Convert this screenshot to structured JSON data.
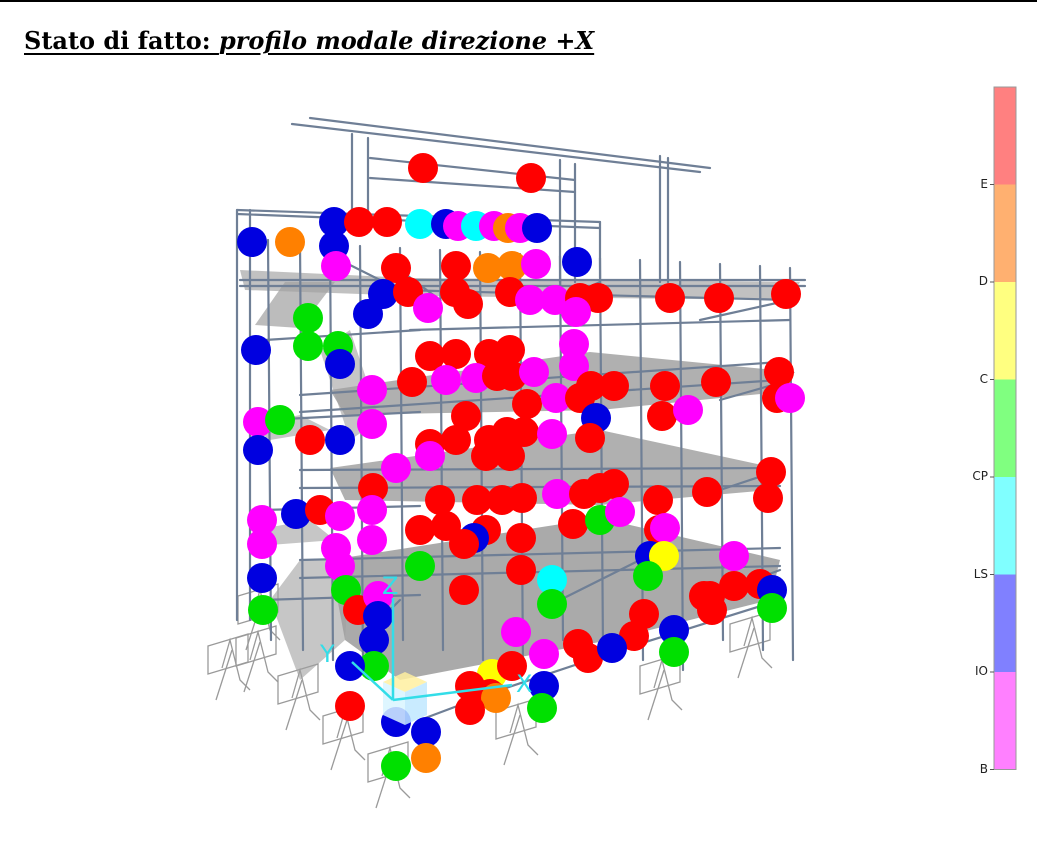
{
  "title": {
    "prefix": "Stato di fatto: ",
    "emphasis": "profilo modale direzione +X"
  },
  "axes": {
    "x": "X",
    "y": "Y",
    "z": "Z"
  },
  "legend": {
    "labels": [
      "E",
      "D",
      "C",
      "CP",
      "LS",
      "IO",
      "B"
    ],
    "bands": [
      {
        "color": "#ff8080"
      },
      {
        "color": "#ffb070"
      },
      {
        "color": "#ffff80"
      },
      {
        "color": "#80ff80"
      },
      {
        "color": "#80ffff"
      },
      {
        "color": "#8080ff"
      },
      {
        "color": "#ff80ff"
      }
    ]
  },
  "hinge_colors": {
    "E": "#ff0000",
    "D": "#ff8000",
    "C": "#ffff00",
    "CP": "#00e000",
    "LS": "#00ffff",
    "IO": "#0000e0",
    "B": "#ff00ff"
  },
  "colors": {
    "frame": "#7a8aa0",
    "slab": "#909090",
    "support": "#909090"
  }
}
